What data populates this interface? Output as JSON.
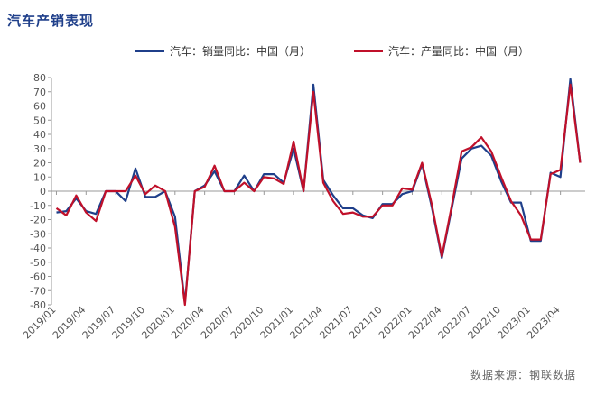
{
  "title": "汽车产销表现",
  "source": "数据来源：钢联数据",
  "chart_data": {
    "type": "line",
    "title": "汽车产销表现",
    "ylim": [
      -80,
      80
    ],
    "yticks": [
      80,
      70,
      60,
      50,
      40,
      30,
      20,
      10,
      0,
      -10,
      -20,
      -30,
      -40,
      -50,
      -60,
      -70,
      -80
    ],
    "x_tick_labels": [
      "2019/01",
      "2019/04",
      "2019/07",
      "2019/10",
      "2020/01",
      "2020/04",
      "2020/07",
      "2020/10",
      "2021/01",
      "2021/04",
      "2021/07",
      "2021/10",
      "2022/01",
      "2022/04",
      "2022/07",
      "2022/10",
      "2023/01",
      "2023/04"
    ],
    "legend_position": "top-center",
    "grid": false,
    "series": [
      {
        "name": "汽车：销量同比：中国（月）",
        "color": "#1f3f8a",
        "values": [
          -15,
          -14,
          -5,
          -14,
          -16,
          0,
          0,
          -7,
          16,
          -4,
          -4,
          0,
          -18,
          -79,
          0,
          4,
          14,
          0,
          0,
          11,
          0,
          12,
          12,
          6,
          30,
          0,
          75,
          8,
          -3,
          -12,
          -12,
          -17,
          -19,
          -9,
          -9,
          -2,
          0,
          19,
          -12,
          -47,
          -12,
          23,
          30,
          32,
          25,
          7,
          -8,
          -8,
          -35,
          -35,
          13,
          10,
          79,
          20
        ]
      },
      {
        "name": "汽车：产量同比：中国（月）",
        "color": "#c0102a",
        "values": [
          -12,
          -17,
          -3,
          -15,
          -21,
          0,
          0,
          0,
          11,
          -2,
          4,
          0,
          -25,
          -80,
          0,
          3,
          18,
          0,
          0,
          6,
          0,
          10,
          9,
          5,
          35,
          0,
          70,
          6,
          -7,
          -16,
          -15,
          -18,
          -18,
          -10,
          -10,
          2,
          1,
          20,
          -10,
          -46,
          -10,
          28,
          31,
          38,
          28,
          10,
          -7,
          -17,
          -34,
          -34,
          12,
          15,
          75,
          20
        ]
      }
    ]
  }
}
